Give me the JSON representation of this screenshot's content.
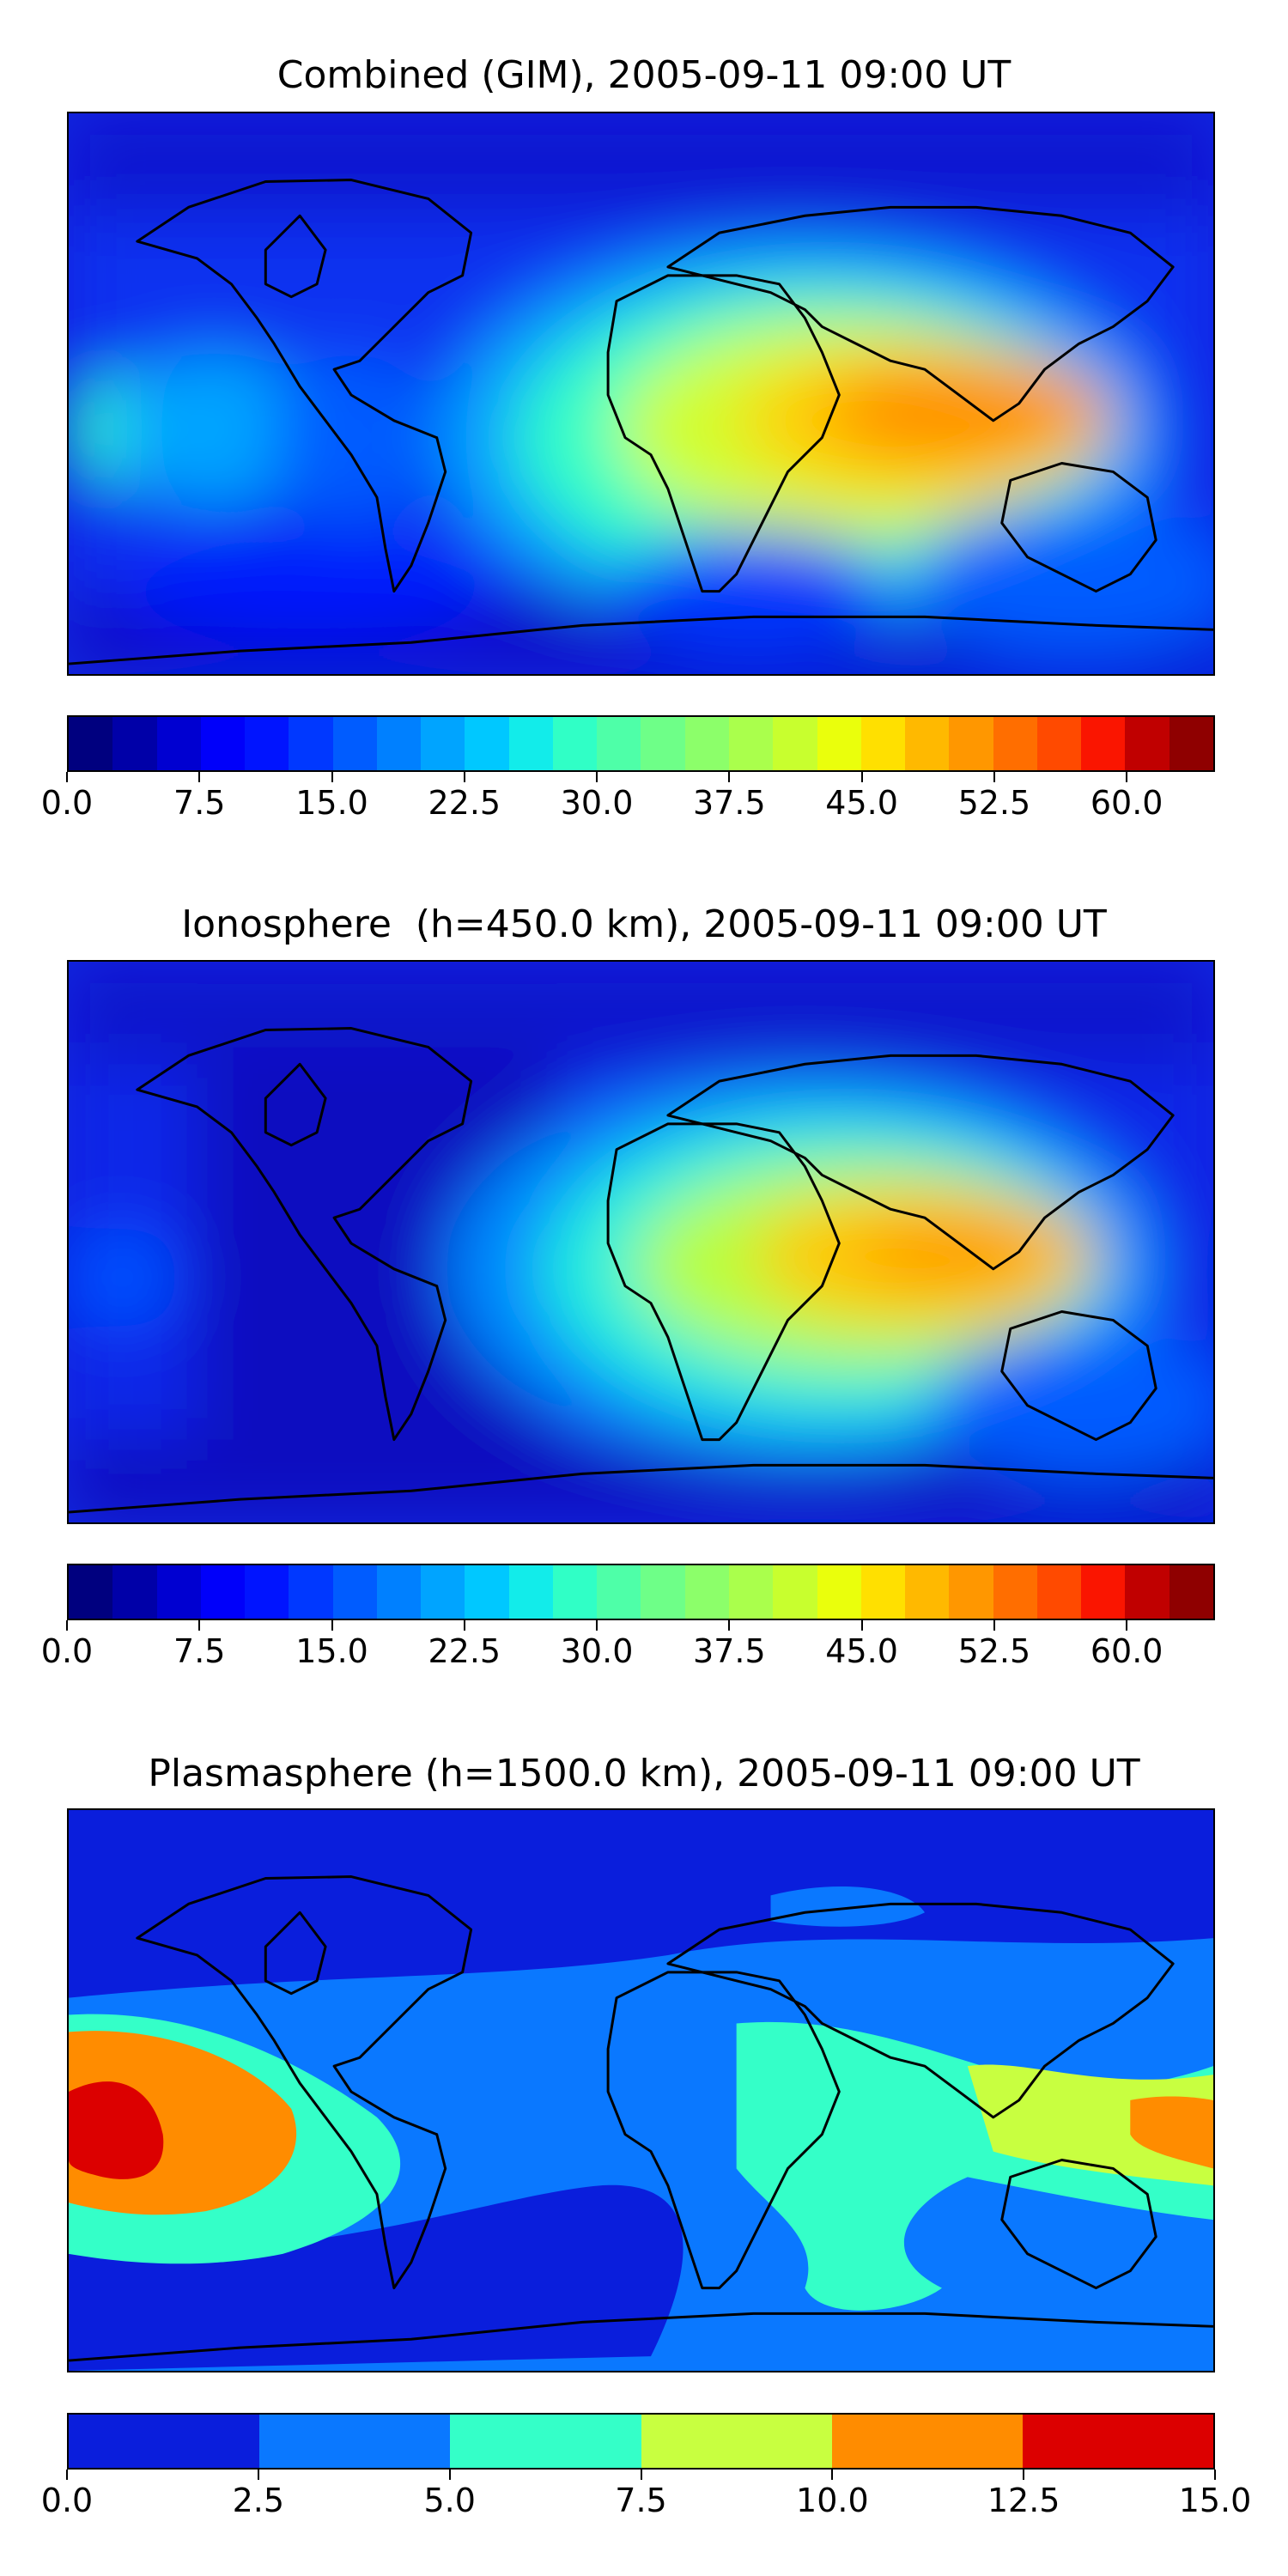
{
  "panels": [
    {
      "title": "Combined (GIM), 2005-09-11 09:00 UT",
      "colorbar": {
        "min": 0.0,
        "max": 65.0,
        "levels": 25,
        "colors": [
          "#00007f",
          "#0000a8",
          "#0000d1",
          "#0000fa",
          "#0014ff",
          "#0038ff",
          "#005cff",
          "#0080ff",
          "#00a4ff",
          "#00c8ff",
          "#12ecea",
          "#30ffc6",
          "#4effa8",
          "#6eff88",
          "#8cff6a",
          "#aaff4c",
          "#c8ff2e",
          "#eaff0c",
          "#ffe000",
          "#ffb900",
          "#ff9700",
          "#ff6e00",
          "#ff4a00",
          "#fa1500",
          "#c00000",
          "#8f0000"
        ],
        "tick_labels": [
          "0.0",
          "7.5",
          "15.0",
          "22.5",
          "30.0",
          "37.5",
          "45.0",
          "52.5",
          "60.0"
        ],
        "tick_values": [
          0.0,
          7.5,
          15.0,
          22.5,
          30.0,
          37.5,
          45.0,
          52.5,
          60.0
        ]
      }
    },
    {
      "title": "Ionosphere  (h=450.0 km), 2005-09-11 09:00 UT",
      "colorbar": {
        "min": 0.0,
        "max": 65.0,
        "levels": 25,
        "colors": [
          "#00007f",
          "#0000a8",
          "#0000d1",
          "#0000fa",
          "#0014ff",
          "#0038ff",
          "#005cff",
          "#0080ff",
          "#00a4ff",
          "#00c8ff",
          "#12ecea",
          "#30ffc6",
          "#4effa8",
          "#6eff88",
          "#8cff6a",
          "#aaff4c",
          "#c8ff2e",
          "#eaff0c",
          "#ffe000",
          "#ffb900",
          "#ff9700",
          "#ff6e00",
          "#ff4a00",
          "#fa1500",
          "#c00000",
          "#8f0000"
        ],
        "tick_labels": [
          "0.0",
          "7.5",
          "15.0",
          "22.5",
          "30.0",
          "37.5",
          "45.0",
          "52.5",
          "60.0"
        ],
        "tick_values": [
          0.0,
          7.5,
          15.0,
          22.5,
          30.0,
          37.5,
          45.0,
          52.5,
          60.0
        ]
      }
    },
    {
      "title": "Plasmasphere (h=1500.0 km), 2005-09-11 09:00 UT",
      "colorbar": {
        "min": 0.0,
        "max": 15.0,
        "levels": 6,
        "colors": [
          "#0a1edc",
          "#0a78ff",
          "#34ffc8",
          "#c8ff40",
          "#ff8c00",
          "#dc0000"
        ],
        "tick_labels": [
          "0.0",
          "2.5",
          "5.0",
          "7.5",
          "10.0",
          "12.5",
          "15.0"
        ],
        "tick_values": [
          0.0,
          2.5,
          5.0,
          7.5,
          10.0,
          12.5,
          15.0
        ]
      }
    }
  ],
  "chart_data": [
    {
      "type": "heatmap",
      "title": "Combined (GIM), 2005-09-11 09:00 UT",
      "projection": "equirectangular world map with coastlines",
      "colorbar_range": [
        0.0,
        65.0
      ],
      "features": [
        {
          "region": "South/Southeast Asia and northern Indian Ocean",
          "value": 50
        },
        {
          "region": "Africa equatorial",
          "value": 40
        },
        {
          "region": "Australia",
          "value": 18
        },
        {
          "region": "Eastern Pacific near dateline",
          "value": 27
        },
        {
          "region": "Americas",
          "value": 8
        },
        {
          "region": "Polar regions",
          "value": 3
        }
      ]
    },
    {
      "type": "heatmap",
      "title": "Ionosphere  (h=450.0 km), 2005-09-11 09:00 UT",
      "projection": "equirectangular world map with coastlines",
      "colorbar_range": [
        0.0,
        65.0
      ],
      "features": [
        {
          "region": "South/Southeast Asia and northern Indian Ocean",
          "value": 45
        },
        {
          "region": "Africa equatorial",
          "value": 37
        },
        {
          "region": "Australia",
          "value": 15
        },
        {
          "region": "Eastern Pacific near dateline",
          "value": 14
        },
        {
          "region": "Americas",
          "value": 4
        },
        {
          "region": "Polar regions",
          "value": 2
        }
      ]
    },
    {
      "type": "heatmap",
      "title": "Plasmasphere (h=1500.0 km), 2005-09-11 09:00 UT",
      "projection": "equirectangular world map with coastlines",
      "colorbar_range": [
        0.0,
        15.0
      ],
      "features": [
        {
          "region": "Central Pacific (west edge)",
          "value": 13
        },
        {
          "region": "Eastern Pacific",
          "value": 11
        },
        {
          "region": "Western Pacific / Australia east",
          "value": 11
        },
        {
          "region": "Southeast Asia",
          "value": 8
        },
        {
          "region": "Tropics band",
          "value": 4
        },
        {
          "region": "South Atlantic",
          "value": 1.5
        },
        {
          "region": "High latitudes",
          "value": 1.5
        }
      ]
    }
  ]
}
